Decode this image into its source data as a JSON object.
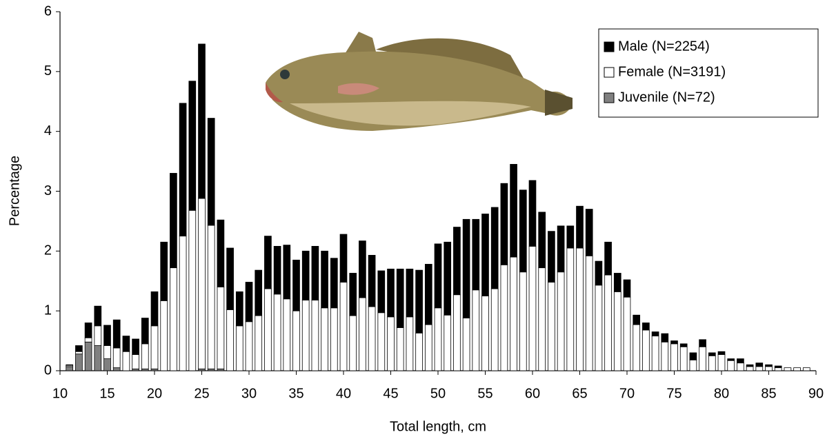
{
  "chart_data": {
    "type": "stacked-bar",
    "x_label": "Total length, cm",
    "y_label": "Percentage",
    "x": [
      11,
      12,
      13,
      14,
      15,
      16,
      17,
      18,
      19,
      20,
      21,
      22,
      23,
      24,
      25,
      26,
      27,
      28,
      29,
      30,
      31,
      32,
      33,
      34,
      35,
      36,
      37,
      38,
      39,
      40,
      41,
      42,
      43,
      44,
      45,
      46,
      47,
      48,
      49,
      50,
      51,
      52,
      53,
      54,
      55,
      56,
      57,
      58,
      59,
      60,
      61,
      62,
      63,
      64,
      65,
      66,
      67,
      68,
      69,
      70,
      71,
      72,
      73,
      74,
      75,
      76,
      77,
      78,
      79,
      80,
      81,
      82,
      83,
      84,
      85,
      86,
      87,
      88,
      89
    ],
    "series": [
      {
        "name": "Juvenile (N=72)",
        "color": "#808080",
        "values": [
          0.07,
          0.28,
          0.48,
          0.42,
          0.2,
          0.05,
          0,
          0.03,
          0.03,
          0.03,
          0,
          0,
          0,
          0,
          0.03,
          0.03,
          0.03,
          0,
          0,
          0,
          0,
          0,
          0,
          0,
          0,
          0,
          0,
          0,
          0,
          0,
          0,
          0,
          0,
          0,
          0,
          0,
          0,
          0,
          0,
          0,
          0,
          0,
          0,
          0,
          0,
          0,
          0,
          0,
          0,
          0,
          0,
          0,
          0,
          0,
          0,
          0,
          0,
          0,
          0,
          0,
          0,
          0,
          0,
          0,
          0,
          0,
          0,
          0,
          0,
          0,
          0,
          0,
          0,
          0,
          0,
          0,
          0,
          0,
          0
        ]
      },
      {
        "name": "Female (N=3191)",
        "color": "#ffffff",
        "values": [
          0.02,
          0.04,
          0.07,
          0.33,
          0.22,
          0.33,
          0.32,
          0.24,
          0.42,
          0.72,
          1.17,
          1.72,
          2.25,
          2.68,
          2.85,
          2.4,
          1.37,
          1.02,
          0.75,
          0.82,
          0.92,
          1.37,
          1.28,
          1.2,
          1.0,
          1.18,
          1.18,
          1.05,
          1.05,
          1.48,
          0.92,
          1.22,
          1.07,
          0.97,
          0.9,
          0.72,
          0.9,
          0.63,
          0.77,
          1.05,
          0.93,
          1.27,
          0.88,
          1.35,
          1.25,
          1.37,
          1.77,
          1.9,
          1.65,
          2.08,
          1.72,
          1.48,
          1.65,
          2.05,
          2.05,
          1.92,
          1.43,
          1.6,
          1.32,
          1.23,
          0.77,
          0.68,
          0.58,
          0.48,
          0.45,
          0.4,
          0.18,
          0.4,
          0.25,
          0.27,
          0.17,
          0.13,
          0.07,
          0.07,
          0.07,
          0.05,
          0.05,
          0.05,
          0.05
        ]
      },
      {
        "name": "Male (N=2254)",
        "color": "#000000",
        "values": [
          0.01,
          0.1,
          0.25,
          0.33,
          0.34,
          0.47,
          0.26,
          0.26,
          0.43,
          0.57,
          0.98,
          1.58,
          2.22,
          2.16,
          2.58,
          1.79,
          1.12,
          1.03,
          0.57,
          0.66,
          0.76,
          0.88,
          0.8,
          0.9,
          0.85,
          0.82,
          0.9,
          0.95,
          0.83,
          0.8,
          0.71,
          0.95,
          0.86,
          0.7,
          0.8,
          0.98,
          0.8,
          1.05,
          1.01,
          1.07,
          1.22,
          1.13,
          1.65,
          1.18,
          1.37,
          1.36,
          1.36,
          1.55,
          1.37,
          1.1,
          0.93,
          0.85,
          0.77,
          0.37,
          0.7,
          0.78,
          0.4,
          0.55,
          0.31,
          0.29,
          0.16,
          0.12,
          0.07,
          0.14,
          0.05,
          0.05,
          0.12,
          0.12,
          0.05,
          0.05,
          0.03,
          0.07,
          0.03,
          0.06,
          0.03,
          0.03,
          0,
          0,
          0
        ]
      }
    ],
    "legend_order": [
      2,
      1,
      0
    ],
    "xlim": [
      10,
      90
    ],
    "xticks": [
      10,
      15,
      20,
      25,
      30,
      35,
      40,
      45,
      50,
      55,
      60,
      65,
      70,
      75,
      80,
      85,
      90
    ],
    "ylim": [
      0,
      6
    ],
    "yticks": [
      0,
      1,
      2,
      3,
      4,
      5,
      6
    ]
  }
}
